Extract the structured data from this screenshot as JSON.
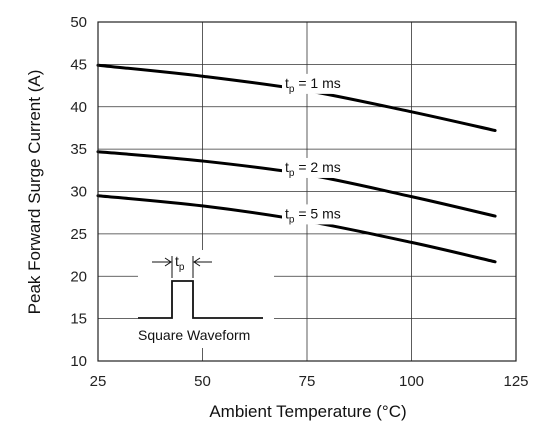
{
  "chart_data": {
    "type": "line",
    "title": "",
    "xlabel": "Ambient Temperature (°C)",
    "ylabel": "Peak Forward Surge Current (A)",
    "xlim": [
      25,
      125
    ],
    "ylim": [
      10,
      50
    ],
    "xticks": [
      25,
      50,
      75,
      100,
      125
    ],
    "yticks": [
      10,
      15,
      20,
      25,
      30,
      35,
      40,
      45,
      50
    ],
    "grid": true,
    "series": [
      {
        "name": "tp = 1 ms",
        "label_main": "t",
        "label_sub": "p",
        "label_rest": " = 1 ms",
        "x": [
          25,
          50,
          75,
          100,
          120
        ],
        "y": [
          44.9,
          43.6,
          41.9,
          39.4,
          37.2
        ]
      },
      {
        "name": "tp = 2 ms",
        "label_main": "t",
        "label_sub": "p",
        "label_rest": " = 2 ms",
        "x": [
          25,
          50,
          75,
          100,
          120
        ],
        "y": [
          34.7,
          33.6,
          32.0,
          29.4,
          27.1
        ]
      },
      {
        "name": "tp = 5 ms",
        "label_main": "t",
        "label_sub": "p",
        "label_rest": " = 5 ms",
        "x": [
          25,
          50,
          75,
          100,
          120
        ],
        "y": [
          29.5,
          28.3,
          26.5,
          24.0,
          21.7
        ]
      }
    ],
    "inset": {
      "caption": "Square Waveform",
      "pulse_main": "t",
      "pulse_sub": "p"
    }
  }
}
